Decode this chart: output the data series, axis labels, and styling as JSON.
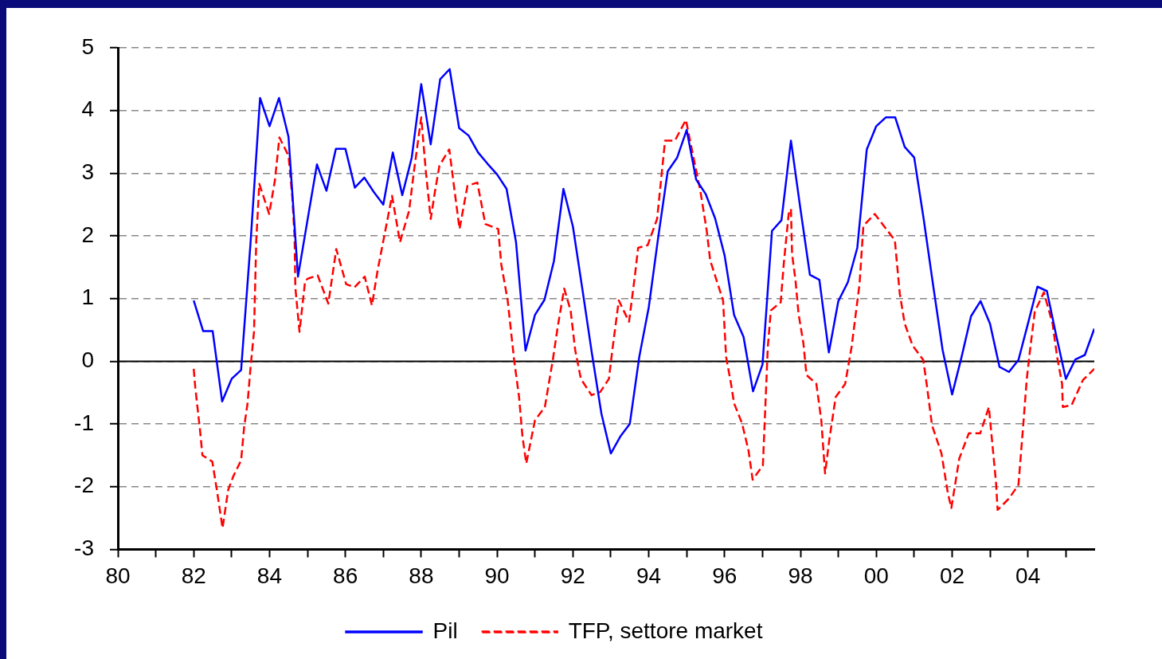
{
  "chart_data": {
    "type": "line",
    "xlim": [
      1980,
      2005.75
    ],
    "xticks": [
      {
        "value": 1980,
        "label": "80"
      },
      {
        "value": 1981,
        "label": null
      },
      {
        "value": 1982,
        "label": "82"
      },
      {
        "value": 1983,
        "label": null
      },
      {
        "value": 1984,
        "label": "84"
      },
      {
        "value": 1985,
        "label": null
      },
      {
        "value": 1986,
        "label": "86"
      },
      {
        "value": 1987,
        "label": null
      },
      {
        "value": 1988,
        "label": "88"
      },
      {
        "value": 1989,
        "label": null
      },
      {
        "value": 1990,
        "label": "90"
      },
      {
        "value": 1991,
        "label": null
      },
      {
        "value": 1992,
        "label": "92"
      },
      {
        "value": 1993,
        "label": null
      },
      {
        "value": 1994,
        "label": "94"
      },
      {
        "value": 1995,
        "label": null
      },
      {
        "value": 1996,
        "label": "96"
      },
      {
        "value": 1997,
        "label": null
      },
      {
        "value": 1998,
        "label": "98"
      },
      {
        "value": 1999,
        "label": null
      },
      {
        "value": 2000,
        "label": "00"
      },
      {
        "value": 2001,
        "label": null
      },
      {
        "value": 2002,
        "label": "02"
      },
      {
        "value": 2003,
        "label": null
      },
      {
        "value": 2004,
        "label": "04"
      },
      {
        "value": 2005,
        "label": null
      }
    ],
    "ylim": [
      -3,
      5
    ],
    "yticks": [
      -3,
      -2,
      -1,
      0,
      1,
      2,
      3,
      4,
      5
    ],
    "grid": "y",
    "legend": "bottom",
    "marker": "none",
    "ref_lines": [
      {
        "axis": "y",
        "value": 0,
        "color": "#000000",
        "line_style": "solid"
      }
    ],
    "series": [
      {
        "name": "Pil",
        "color": "#0000ff",
        "line_style": "solid",
        "x": [
          1982,
          1982.25,
          1982.5,
          1982.75,
          1983,
          1983.25,
          1983.5,
          1983.75,
          1984,
          1984.25,
          1984.5,
          1984.75,
          1985,
          1985.25,
          1985.5,
          1985.75,
          1986,
          1986.25,
          1986.5,
          1986.75,
          1987,
          1987.25,
          1987.5,
          1987.75,
          1988,
          1988.25,
          1988.5,
          1988.75,
          1989,
          1989.25,
          1989.5,
          1989.75,
          1990,
          1990.25,
          1990.5,
          1990.75,
          1991,
          1991.25,
          1991.5,
          1991.75,
          1992,
          1992.25,
          1992.5,
          1992.75,
          1993,
          1993.25,
          1993.5,
          1993.75,
          1994,
          1994.25,
          1994.5,
          1994.75,
          1995,
          1995.25,
          1995.5,
          1995.75,
          1996,
          1996.25,
          1996.5,
          1996.75,
          1997,
          1997.25,
          1997.5,
          1997.75,
          1998,
          1998.25,
          1998.5,
          1998.75,
          1999,
          1999.25,
          1999.5,
          1999.75,
          2000,
          2000.25,
          2000.5,
          2000.75,
          2001,
          2001.25,
          2001.5,
          2001.75,
          2002,
          2002.25,
          2002.5,
          2002.75,
          2003,
          2003.25,
          2003.5,
          2003.75,
          2004,
          2004.25,
          2004.5,
          2004.75,
          2005,
          2005.25,
          2005.5,
          2005.75
        ],
        "values": [
          0.97,
          0.48,
          0.48,
          -0.64,
          -0.28,
          -0.14,
          1.9,
          4.2,
          3.75,
          4.2,
          3.58,
          1.35,
          2.25,
          3.14,
          2.72,
          3.39,
          3.39,
          2.77,
          2.93,
          2.7,
          2.5,
          3.33,
          2.65,
          3.25,
          4.42,
          3.46,
          4.5,
          4.66,
          3.72,
          3.6,
          3.33,
          3.15,
          2.98,
          2.75,
          1.9,
          0.17,
          0.74,
          0.98,
          1.6,
          2.75,
          2.15,
          1.15,
          0.13,
          -0.83,
          -1.47,
          -1.2,
          -1.0,
          0.07,
          0.86,
          1.98,
          3.03,
          3.25,
          3.69,
          2.9,
          2.67,
          2.28,
          1.69,
          0.74,
          0.39,
          -0.48,
          -0.05,
          2.08,
          2.25,
          3.52,
          2.43,
          1.38,
          1.3,
          0.14,
          0.96,
          1.26,
          1.81,
          3.38,
          3.75,
          3.89,
          3.89,
          3.42,
          3.25,
          2.27,
          1.21,
          0.18,
          -0.53,
          0.07,
          0.72,
          0.96,
          0.6,
          -0.09,
          -0.17,
          0.02,
          0.6,
          1.19,
          1.12,
          0.4,
          -0.28,
          0.03,
          0.1,
          0.52
        ]
      },
      {
        "name": "TFP, settore market",
        "color": "#ff0000",
        "line_style": "dashed",
        "x": [
          1982,
          1982.04,
          1982.17,
          1982.23,
          1982.49,
          1982.61,
          1982.76,
          1982.91,
          1983.04,
          1983.25,
          1983.33,
          1983.42,
          1983.5,
          1983.59,
          1983.65,
          1983.73,
          1983.99,
          1984.14,
          1984.26,
          1984.5,
          1984.6,
          1984.66,
          1984.68,
          1984.79,
          1984.94,
          1985.02,
          1985.27,
          1985.55,
          1985.76,
          1986.02,
          1986.24,
          1986.51,
          1986.7,
          1986.85,
          1987.02,
          1987.23,
          1987.44,
          1987.68,
          1987.81,
          1988,
          1988.12,
          1988.25,
          1988.36,
          1988.48,
          1988.74,
          1988.89,
          1989.01,
          1989.22,
          1989.48,
          1989.69,
          1990.03,
          1990.11,
          1990.28,
          1990.45,
          1990.58,
          1990.67,
          1990.77,
          1991,
          1991.26,
          1991.47,
          1991.6,
          1991.77,
          1991.94,
          1992.06,
          1992.21,
          1992.49,
          1992.72,
          1992.95,
          1993.04,
          1993.21,
          1993.48,
          1993.63,
          1993.72,
          1993.97,
          1994.22,
          1994.43,
          1994.69,
          1994.98,
          1995.11,
          1995.36,
          1995.53,
          1995.62,
          1995.96,
          1996.04,
          1996.17,
          1996.25,
          1996.46,
          1996.63,
          1996.74,
          1997.01,
          1997.06,
          1997.14,
          1997.22,
          1997.48,
          1997.56,
          1997.69,
          1997.75,
          1997.78,
          1997.87,
          1997.95,
          1998.08,
          1998.16,
          1998.42,
          1998.55,
          1998.65,
          1998.76,
          1998.93,
          1999.18,
          1999.35,
          1999.56,
          1999.66,
          1999.96,
          2000.49,
          2000.62,
          2000.75,
          2000.96,
          2001.24,
          2001.34,
          2001.47,
          2001.72,
          2001.89,
          2001.98,
          2002.19,
          2002.44,
          2002.74,
          2002.97,
          2003.16,
          2003.2,
          2003.5,
          2003.75,
          2003.88,
          2003.93,
          2003.97,
          2004.05,
          2004.18,
          2004.42,
          2004.65,
          2004.77,
          2004.9,
          2004.92,
          2005.15,
          2005.45,
          2005.75
        ],
        "values": [
          -0.12,
          -0.41,
          -1.12,
          -1.5,
          -1.6,
          -2.05,
          -2.66,
          -2.05,
          -1.84,
          -1.58,
          -1.05,
          -0.67,
          -0.09,
          0.47,
          1.93,
          2.83,
          2.35,
          2.88,
          3.57,
          3.28,
          2.62,
          1.98,
          1.18,
          0.47,
          1.29,
          1.32,
          1.37,
          0.92,
          1.79,
          1.23,
          1.18,
          1.35,
          0.89,
          1.45,
          1.98,
          2.64,
          1.9,
          2.4,
          3.04,
          3.89,
          3.04,
          2.27,
          2.7,
          3.12,
          3.38,
          2.67,
          2.11,
          2.8,
          2.85,
          2.19,
          2.11,
          1.55,
          0.97,
          0.02,
          -0.57,
          -1.2,
          -1.63,
          -0.94,
          -0.73,
          0.02,
          0.55,
          1.16,
          0.81,
          0.18,
          -0.28,
          -0.54,
          -0.49,
          -0.28,
          0.18,
          0.97,
          0.63,
          1.34,
          1.81,
          1.85,
          2.27,
          3.52,
          3.52,
          3.85,
          3.46,
          2.72,
          2.08,
          1.61,
          0.97,
          0.07,
          -0.36,
          -0.67,
          -0.99,
          -1.42,
          -1.89,
          -1.66,
          -0.94,
          0.23,
          0.81,
          0.94,
          1.55,
          2.35,
          2.43,
          1.71,
          1.29,
          0.76,
          0.28,
          -0.22,
          -0.36,
          -0.94,
          -1.79,
          -1.26,
          -0.57,
          -0.36,
          0.23,
          1.24,
          2.16,
          2.35,
          1.93,
          1.08,
          0.6,
          0.25,
          0.02,
          -0.41,
          -1.02,
          -1.47,
          -2.11,
          -2.34,
          -1.55,
          -1.15,
          -1.15,
          -0.73,
          -1.95,
          -2.37,
          -2.19,
          -1.97,
          -0.99,
          -0.59,
          -0.28,
          0.15,
          0.79,
          1.1,
          0.6,
          0.07,
          -0.36,
          -0.73,
          -0.7,
          -0.3,
          -0.12
        ]
      }
    ]
  }
}
